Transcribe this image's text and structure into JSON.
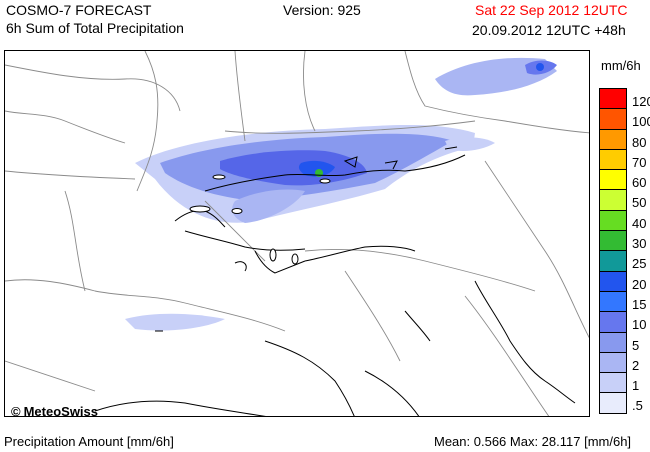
{
  "header": {
    "model_title": "COSMO-7 FORECAST",
    "product": "6h Sum of Total Precipitation",
    "version": "Version: 925",
    "valid_time": "Sat 22 Sep 2012 12UTC",
    "run_time": "20.09.2012 12UTC +48h"
  },
  "credit": {
    "text": "MeteoSwiss",
    "symbol": "©"
  },
  "legend": {
    "unit": "mm/6h",
    "levels": [
      {
        "label": "120",
        "color": "#ff0000"
      },
      {
        "label": "100",
        "color": "#ff5500"
      },
      {
        "label": "80",
        "color": "#ff9900"
      },
      {
        "label": "70",
        "color": "#ffcc00"
      },
      {
        "label": "60",
        "color": "#ffff00"
      },
      {
        "label": "50",
        "color": "#ccff33"
      },
      {
        "label": "40",
        "color": "#66dd22"
      },
      {
        "label": "30",
        "color": "#33bb33"
      },
      {
        "label": "25",
        "color": "#119999"
      },
      {
        "label": "20",
        "color": "#2255ee"
      },
      {
        "label": "15",
        "color": "#3377ff"
      },
      {
        "label": "10",
        "color": "#6677ee"
      },
      {
        "label": "5",
        "color": "#8899ee"
      },
      {
        "label": "2",
        "color": "#aab6f3"
      },
      {
        "label": "1",
        "color": "#c8d0f8"
      },
      {
        "label": ".5",
        "color": "#e8ecfc"
      }
    ]
  },
  "footer": {
    "left": "Precipitation Amount [mm/6h]",
    "stats": "Mean:  0.566 Max:  28.117 [mm/6h]"
  }
}
